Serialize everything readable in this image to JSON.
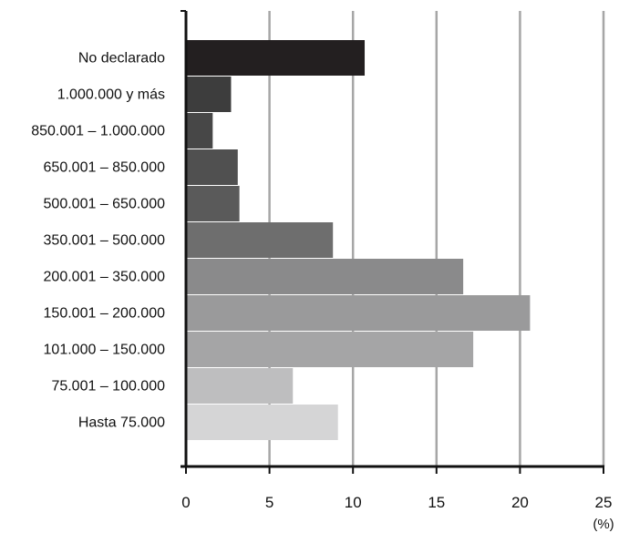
{
  "chart_data": {
    "type": "bar",
    "orientation": "horizontal",
    "categories": [
      "No declarado",
      "1.000.000 y más",
      "850.001 – 1.000.000",
      "650.001 – 850.000",
      "500.001 – 650.000",
      "350.001 –  500.000",
      "200.001 – 350.000",
      "150.001 – 200.000",
      "101.000 –  150.000",
      "75.001 – 100.000",
      "Hasta 75.000"
    ],
    "values": [
      10.7,
      2.7,
      1.6,
      3.1,
      3.2,
      8.8,
      16.6,
      20.6,
      17.2,
      6.4,
      9.1
    ],
    "colors": [
      "#231f20",
      "#3d3d3d",
      "#474747",
      "#505050",
      "#5a5a5a",
      "#6e6e6e",
      "#8a8a8b",
      "#9a9a9b",
      "#a5a5a6",
      "#bebebf",
      "#d5d5d6"
    ],
    "xlim": [
      0,
      25
    ],
    "xticks": [
      "0",
      "5",
      "10",
      "15",
      "20",
      "25"
    ],
    "xunit": "(%)",
    "grid": "vertical",
    "gridcolor": "#a6a6a6"
  }
}
